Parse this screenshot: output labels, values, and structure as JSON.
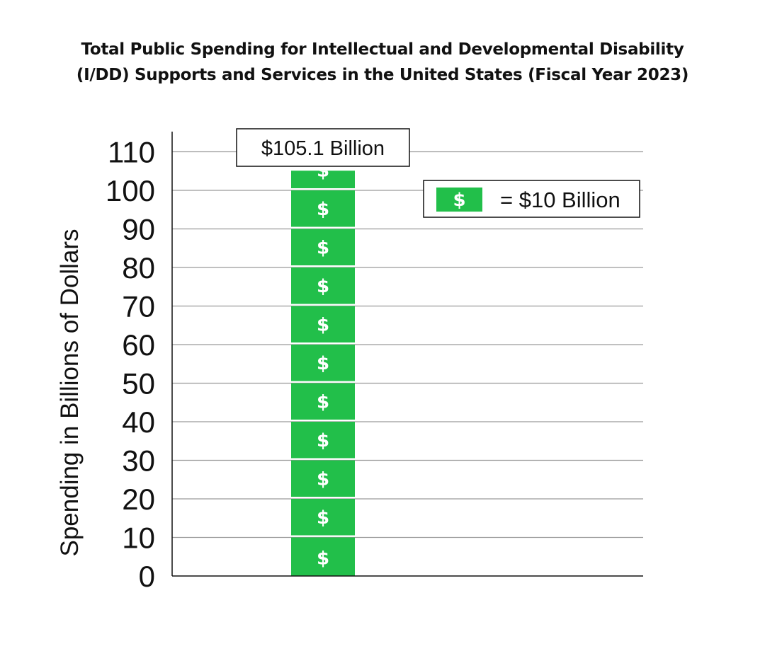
{
  "chart_data": {
    "type": "bar",
    "title_lines": [
      "Total Public Spending for Intellectual and Developmental Disability",
      "(I/DD) Supports and Services in the United States (Fiscal Year 2023)"
    ],
    "ylabel": "Spending in Billions of Dollars",
    "xlabel": "",
    "ylim": [
      0,
      110
    ],
    "yticks": [
      0,
      10,
      20,
      30,
      40,
      50,
      60,
      70,
      80,
      90,
      100,
      110
    ],
    "grid": true,
    "categories": [
      ""
    ],
    "values": [
      105.1
    ],
    "data_label": "$105.1 Billion",
    "icon_unit": 10,
    "icon_symbol": "$",
    "legend": {
      "symbol": "$",
      "label": "= $10 Billion",
      "placement": "top-right"
    },
    "colors": {
      "bar": "#22bf4a",
      "grid": "#9a9a9a",
      "axis": "#111111"
    }
  }
}
